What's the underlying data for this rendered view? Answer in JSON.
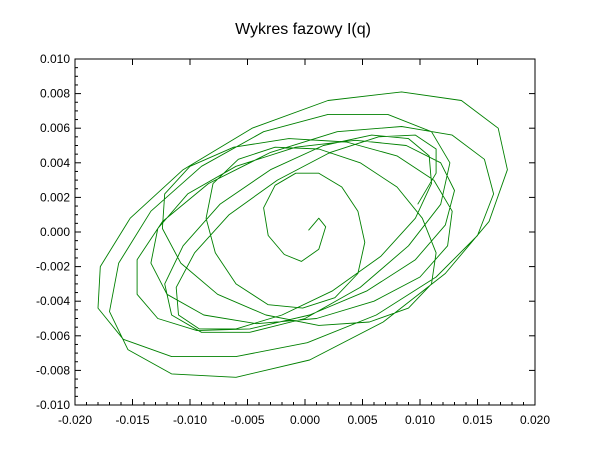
{
  "chart_data": {
    "type": "line",
    "title": "Wykres fazowy I(q)",
    "xlabel": "",
    "ylabel": "",
    "xlim": [
      -0.02,
      0.02
    ],
    "ylim": [
      -0.01,
      0.01
    ],
    "grid": false,
    "x_ticks": [
      "-0.020",
      "-0.015",
      "-0.010",
      "-0.005",
      "0.000",
      "0.005",
      "0.010",
      "0.015",
      "0.020"
    ],
    "y_ticks": [
      "0.010",
      "0.008",
      "0.006",
      "0.004",
      "0.002",
      "0.000",
      "-0.002",
      "-0.004",
      "-0.006",
      "-0.008",
      "-0.010"
    ],
    "series": [
      {
        "color": "#008000",
        "description_points": "phase-plane trajectory spiralling outward from origin",
        "x": [
          0.0003,
          0.0012,
          0.0018,
          0.0012,
          -0.0003,
          -0.0018,
          -0.0032,
          -0.0036,
          -0.0026,
          -0.0008,
          0.0012,
          0.0032,
          0.0046,
          0.0052,
          0.0046,
          0.0026,
          -0.0002,
          -0.0032,
          -0.006,
          -0.0078,
          -0.0086,
          -0.008,
          -0.0058,
          -0.0026,
          0.0012,
          0.0048,
          0.008,
          0.0102,
          0.0114,
          0.011,
          0.009,
          0.0056,
          0.0012,
          -0.0034,
          -0.0076,
          -0.0108,
          -0.0124,
          -0.0122,
          -0.01,
          -0.0062,
          -0.0014,
          0.0036,
          0.008,
          0.0112,
          0.0128,
          0.0124,
          0.01,
          0.006,
          0.001,
          -0.0042,
          -0.0088,
          -0.012,
          -0.0134,
          -0.0128,
          -0.0102,
          -0.006,
          -0.0008,
          0.0044,
          0.0088,
          0.0118,
          0.013,
          0.0122,
          0.0096,
          0.0054,
          0.0004,
          -0.0048,
          -0.0094,
          -0.0128,
          -0.0146,
          -0.0146,
          -0.0124,
          -0.0084,
          -0.003,
          0.0028,
          0.0084,
          0.0128,
          0.0156,
          0.0164,
          0.015,
          0.0114,
          0.0062,
          0.0002,
          -0.006,
          -0.0116,
          -0.0158,
          -0.018,
          -0.0178,
          -0.0152,
          -0.0106,
          -0.0046,
          0.002,
          0.0084,
          0.0136,
          0.0168,
          0.0176,
          0.016,
          0.0122,
          0.0068,
          0.0004,
          -0.006,
          -0.0116,
          -0.0154,
          -0.017,
          -0.0162,
          -0.0134,
          -0.009,
          -0.0036,
          0.002,
          0.0072,
          0.011,
          0.0126,
          0.0118,
          0.009,
          0.0048,
          0.0,
          -0.0048,
          -0.009,
          -0.0116,
          -0.0122,
          -0.0106,
          -0.0074,
          -0.003,
          0.0016,
          0.0058,
          0.009,
          0.0108,
          0.011,
          0.0096,
          0.0066,
          0.0024,
          -0.002,
          -0.006,
          -0.0092,
          -0.011,
          -0.0112,
          -0.0096,
          -0.0066,
          -0.0024,
          0.0022,
          0.0064,
          0.0096,
          0.0114,
          0.0114,
          0.0098
        ],
        "y": [
          0.0001,
          0.0008,
          0.0003,
          -0.001,
          -0.0017,
          -0.0013,
          -0.0002,
          0.0014,
          0.0027,
          0.0034,
          0.0034,
          0.0026,
          0.0012,
          -0.0006,
          -0.0024,
          -0.0038,
          -0.0044,
          -0.0042,
          -0.003,
          -0.0012,
          0.0008,
          0.0028,
          0.0042,
          0.0049,
          0.0048,
          0.004,
          0.0026,
          0.0008,
          -0.0012,
          -0.003,
          -0.0044,
          -0.0052,
          -0.0054,
          -0.0048,
          -0.0036,
          -0.0018,
          0.0002,
          0.0022,
          0.0038,
          0.0049,
          0.0054,
          0.0052,
          0.0044,
          0.003,
          0.0012,
          -0.0008,
          -0.0026,
          -0.004,
          -0.005,
          -0.0053,
          -0.0048,
          -0.0036,
          -0.0018,
          0.0002,
          0.0022,
          0.0038,
          0.0049,
          0.0053,
          0.005,
          0.004,
          0.0024,
          0.0004,
          -0.0016,
          -0.0034,
          -0.0048,
          -0.0056,
          -0.0057,
          -0.005,
          -0.0036,
          -0.0016,
          0.0006,
          0.0028,
          0.0046,
          0.0058,
          0.0061,
          0.0056,
          0.0042,
          0.0022,
          -0.0002,
          -0.0026,
          -0.0048,
          -0.0064,
          -0.0072,
          -0.0072,
          -0.0062,
          -0.0044,
          -0.002,
          0.0008,
          0.0036,
          0.006,
          0.0076,
          0.0081,
          0.0076,
          0.006,
          0.0036,
          0.0006,
          -0.0024,
          -0.0052,
          -0.0074,
          -0.0084,
          -0.0082,
          -0.0068,
          -0.0046,
          -0.0018,
          0.0012,
          0.0038,
          0.0058,
          0.0068,
          0.0068,
          0.0058,
          0.004,
          0.0016,
          -0.0008,
          -0.0032,
          -0.005,
          -0.0058,
          -0.0058,
          -0.0048,
          -0.003,
          -0.0008,
          0.0016,
          0.0036,
          0.005,
          0.0056,
          0.0054,
          0.0044,
          0.0028,
          0.0008,
          -0.0014,
          -0.0034,
          -0.0048,
          -0.0056,
          -0.0056,
          -0.0048,
          -0.0032,
          -0.0012,
          0.001,
          0.003,
          0.0046,
          0.0055,
          0.0056,
          0.0048,
          0.0034,
          0.0016
        ]
      }
    ]
  }
}
